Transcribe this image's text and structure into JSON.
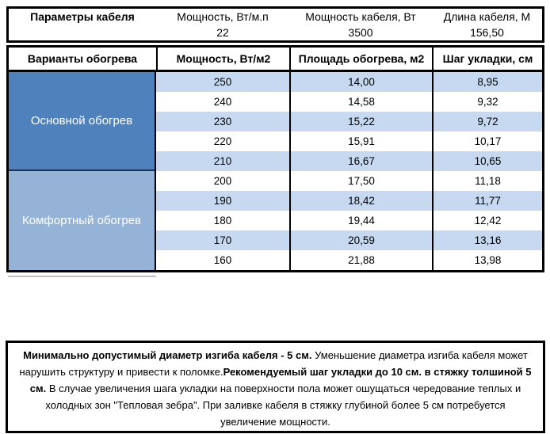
{
  "top_table": {
    "col1_header": "Параметры кабеля",
    "col2_header": "Мощность, Вт/м.п",
    "col3_header": "Мощность кабеля, Вт",
    "col4_header": "Длина кабеля, М",
    "col1_value": "",
    "col2_value": "22",
    "col3_value": "3500",
    "col4_value": "156,50"
  },
  "variants_header": {
    "col1": "Варианты обогрева",
    "col2": "Мощность, Вт/м2",
    "col3": "Площадь обогрева, м2",
    "col4": "Шаг укладки, см"
  },
  "groups": [
    {
      "label": "Основной обогрев",
      "rows": [
        {
          "power": "250",
          "area": "14,00",
          "step": "8,95"
        },
        {
          "power": "240",
          "area": "14,58",
          "step": "9,32"
        },
        {
          "power": "230",
          "area": "15,22",
          "step": "9,72"
        },
        {
          "power": "220",
          "area": "15,91",
          "step": "10,17"
        },
        {
          "power": "210",
          "area": "16,67",
          "step": "10,65"
        }
      ]
    },
    {
      "label": "Комфортный обогрев",
      "rows": [
        {
          "power": "200",
          "area": "17,50",
          "step": "11,18"
        },
        {
          "power": "190",
          "area": "18,42",
          "step": "11,77"
        },
        {
          "power": "180",
          "area": "19,44",
          "step": "12,42"
        },
        {
          "power": "170",
          "area": "20,59",
          "step": "13,16"
        },
        {
          "power": "160",
          "area": "21,88",
          "step": "13,98"
        }
      ]
    }
  ],
  "note": {
    "segments": [
      {
        "bold": true,
        "text": "Минимально допустимый диаметр изгиба кабеля - 5 см."
      },
      {
        "bold": false,
        "text": "  Уменьшение диаметра изгиба кабеля может нарушить структуру и привести к поломке."
      },
      {
        "bold": true,
        "text": "Рекомендуемый шаг укладки до 10 см. в стяжку толшиной 5 см."
      },
      {
        "bold": false,
        "text": " В  случае увеличения шага укладки на поверхности пола может ошущаться чередование теплых и холодных зон \"Тепловая зебра\". При заливке кабеля в стяжку глубиной более 5 см потребуется увеличение мощности."
      }
    ]
  },
  "colors": {
    "primary_blue": "#4f81bd",
    "secondary_blue": "#95b3d7",
    "stripe_blue": "#c6d9f0",
    "divider_navy": "#17365d",
    "border_black": "#000000"
  }
}
